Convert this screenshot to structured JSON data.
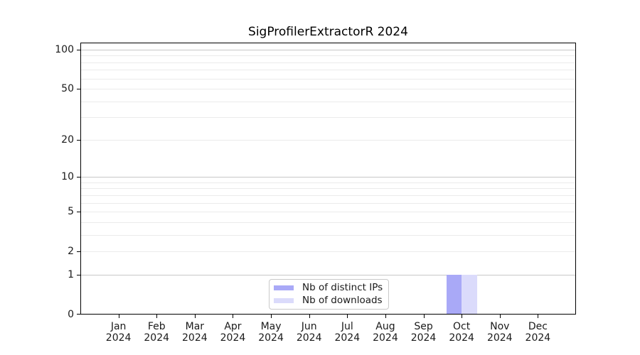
{
  "chart_data": {
    "type": "bar",
    "title": "SigProfilerExtractorR 2024",
    "x": {
      "months": [
        "Jan",
        "Feb",
        "Mar",
        "Apr",
        "May",
        "Jun",
        "Jul",
        "Aug",
        "Sep",
        "Oct",
        "Nov",
        "Dec"
      ],
      "year": "2024"
    },
    "series": [
      {
        "name": "Nb of distinct IPs",
        "color": "#a9a9f7",
        "values": [
          0,
          0,
          0,
          0,
          0,
          0,
          0,
          0,
          0,
          1,
          0,
          0
        ]
      },
      {
        "name": "Nb of downloads",
        "color": "#dbdbfb",
        "values": [
          0,
          0,
          0,
          0,
          0,
          0,
          0,
          0,
          0,
          1,
          0,
          0
        ]
      }
    ],
    "yscale": "log1p",
    "ylim": [
      0,
      113
    ],
    "y_major_ticks": [
      0,
      1,
      2,
      5,
      10,
      20,
      50,
      100
    ],
    "y_decade_gridlines": [
      1,
      10,
      100
    ],
    "y_minor_gridlines": [
      2,
      3,
      4,
      5,
      6,
      7,
      8,
      9,
      20,
      30,
      40,
      50,
      60,
      70,
      80,
      90
    ],
    "grid": true,
    "legend_position": "lower center",
    "colors": {
      "bar_distinct_ips": "#a9a9f7",
      "bar_downloads": "#dbdbfb",
      "grid_major": "#c7c7c7",
      "grid_minor": "#ebebeb",
      "spine": "#000000",
      "text": "#1a1a1a",
      "legend_border": "#c9c9c9",
      "background": "#ffffff"
    }
  }
}
